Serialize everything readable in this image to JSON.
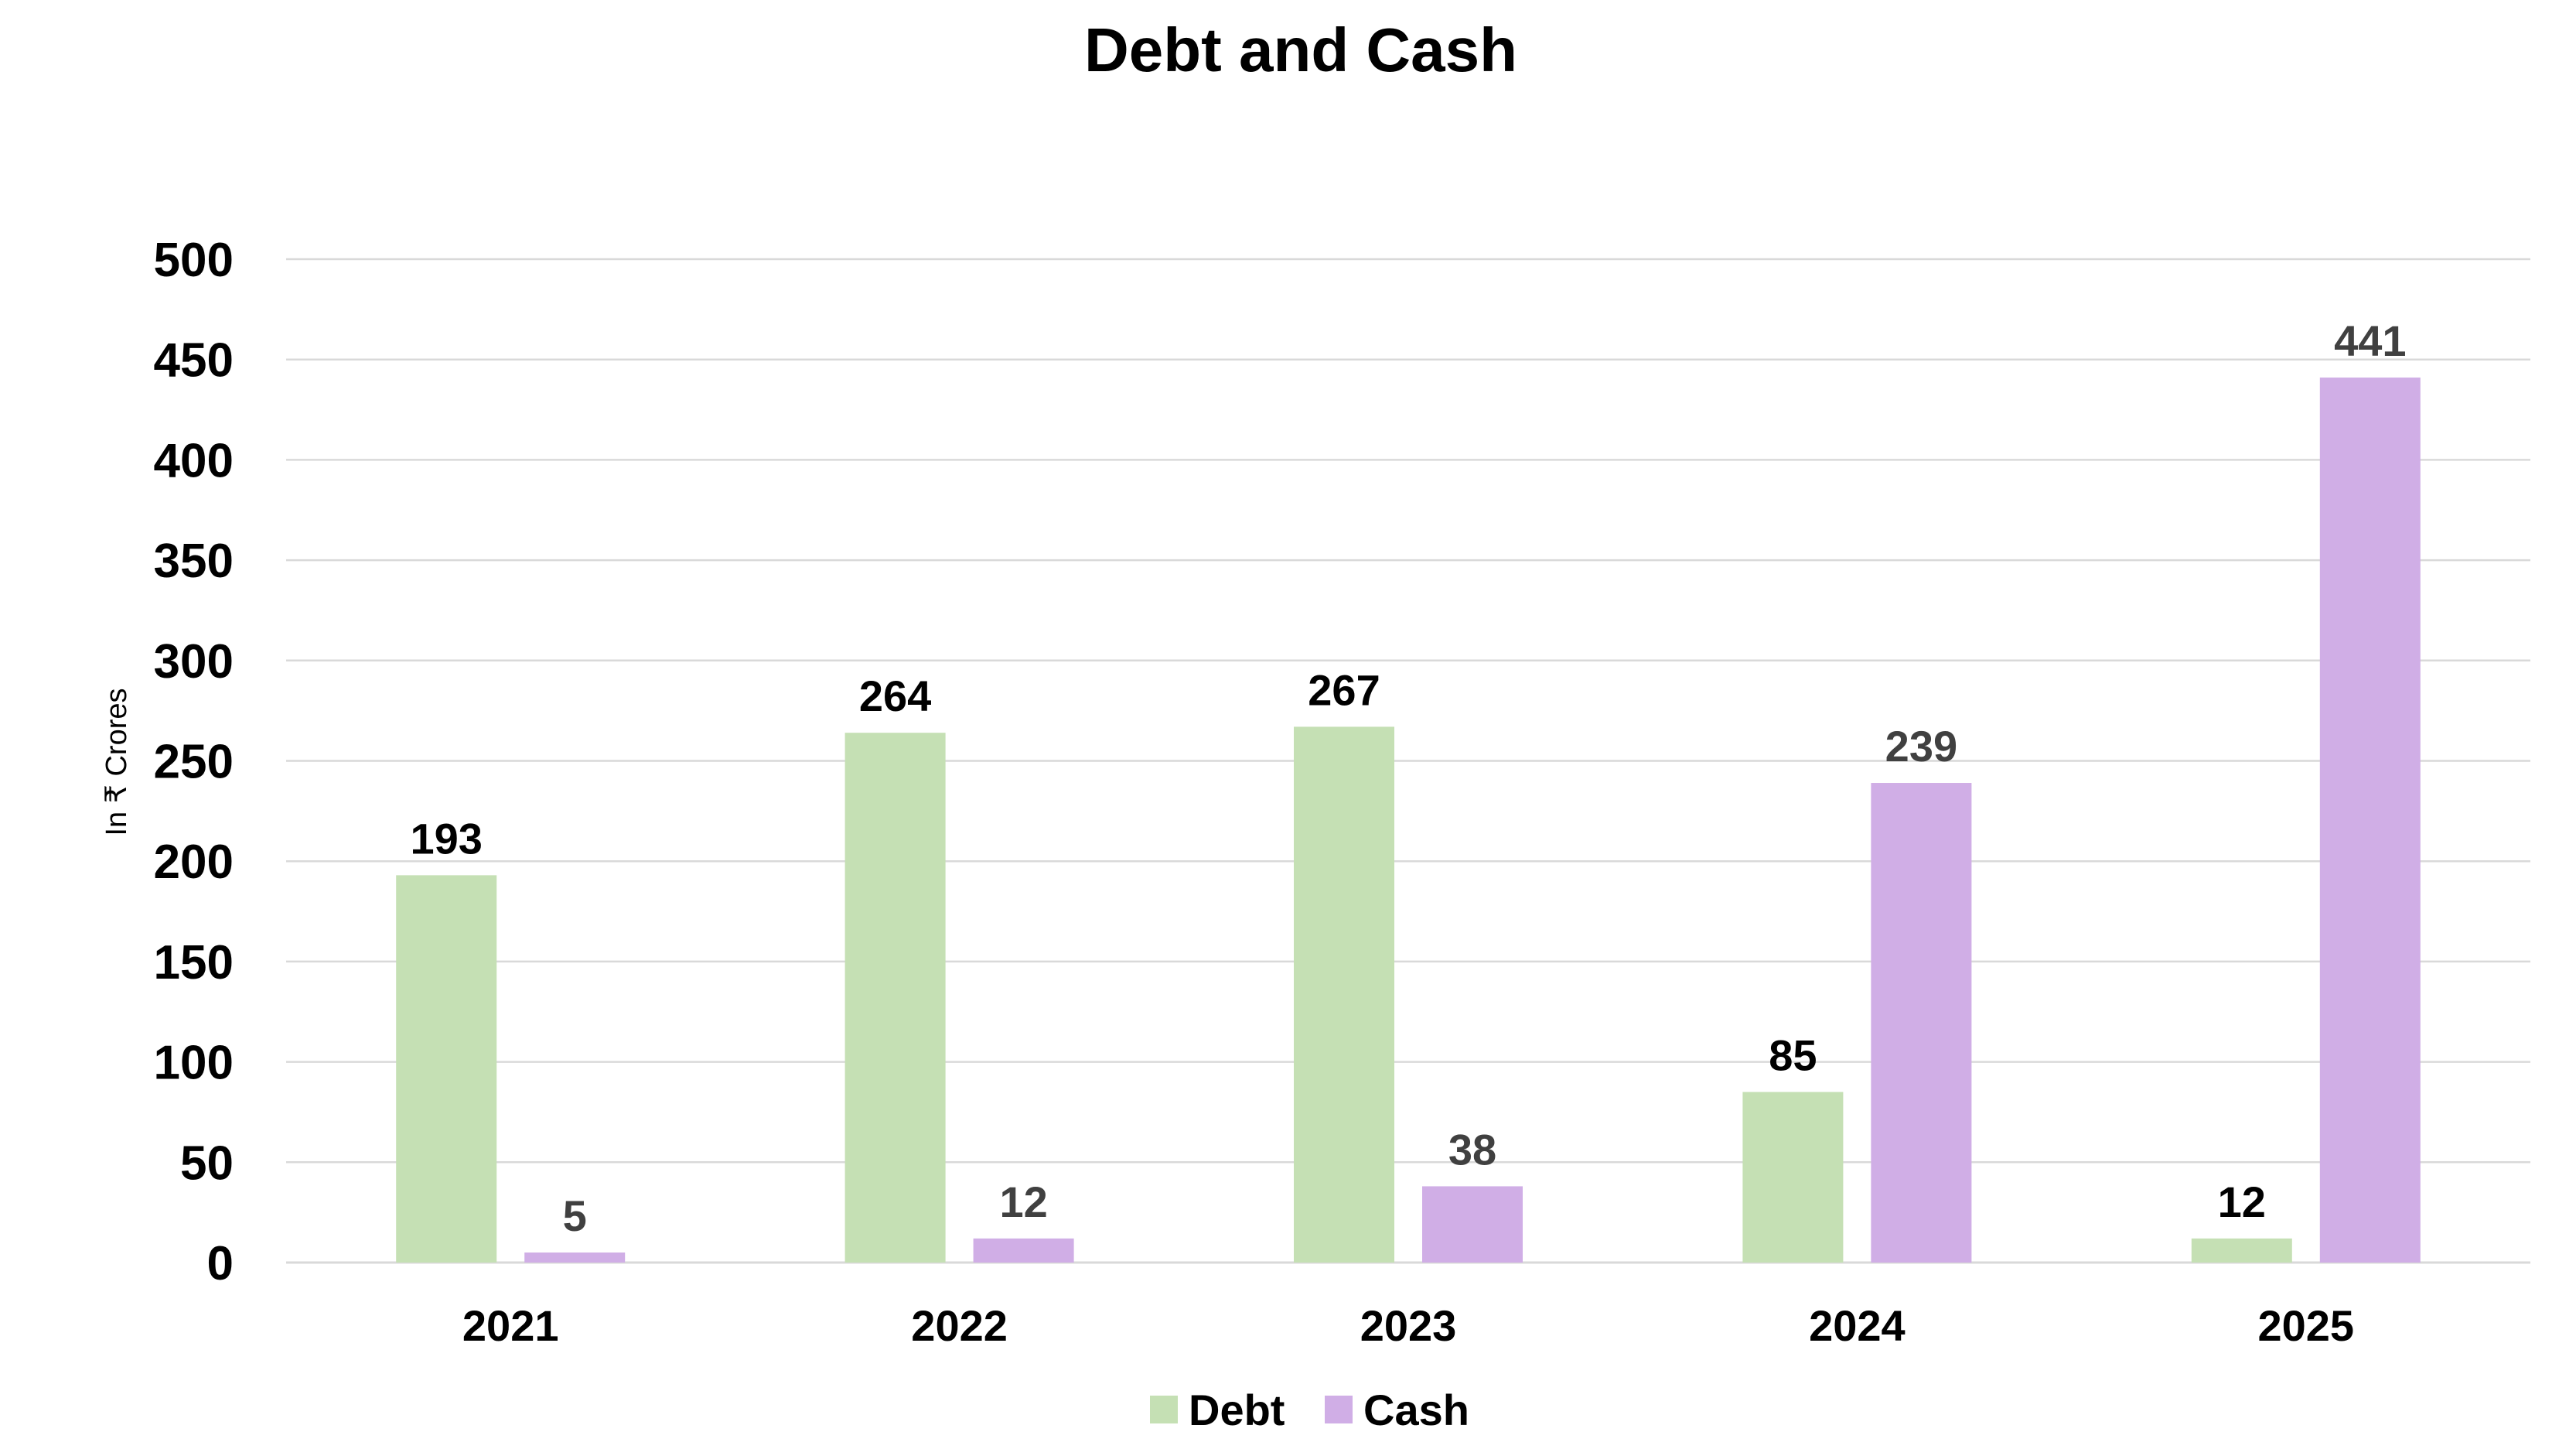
{
  "chart_data": {
    "type": "bar",
    "title": "Debt and Cash",
    "xlabel": "",
    "ylabel": "In ₹ Crores",
    "categories": [
      "2021",
      "2022",
      "2023",
      "2024",
      "2025"
    ],
    "series": [
      {
        "name": "Debt",
        "values": [
          193,
          264,
          267,
          85,
          12
        ],
        "color": "#C5E0B4"
      },
      {
        "name": "Cash",
        "values": [
          5,
          12,
          38,
          239,
          441
        ],
        "color": "#D0AEE6"
      }
    ],
    "ylim": [
      0,
      500
    ],
    "yticks": [
      0,
      50,
      100,
      150,
      200,
      250,
      300,
      350,
      400,
      450,
      500
    ],
    "grid": true,
    "gridline_color": "#D9D9D9",
    "legend_position": "bottom",
    "data_labels": true
  }
}
